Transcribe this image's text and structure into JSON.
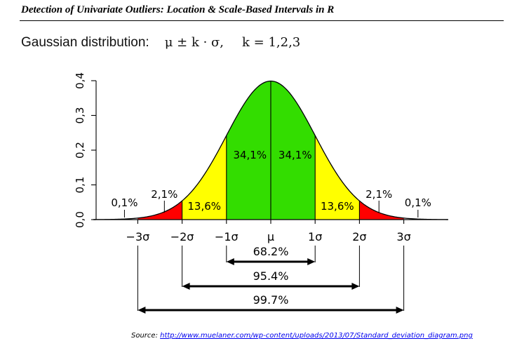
{
  "header": {
    "title": "Detection of Univariate Outliers: Location & Scale-Based Intervals in R"
  },
  "formula": {
    "label": "Gaussian distribution:",
    "expression": "μ ± k · σ,",
    "k_values": "k = 1,2,3"
  },
  "source": {
    "label": "Source:",
    "link": "http://www.muelaner.com/wp-content/uploads/2013/07/Standard_deviation_diagram.png"
  },
  "chart_data": {
    "type": "area",
    "distribution": "standard normal density",
    "ylim": [
      0,
      0.4
    ],
    "xlim": [
      -4,
      4
    ],
    "yticks": [
      "0,0",
      "0,1",
      "0,2",
      "0,3",
      "0,4"
    ],
    "ytick_values": [
      0,
      0.1,
      0.2,
      0.3,
      0.4
    ],
    "xticks": [
      "−3σ",
      "−2σ",
      "−1σ",
      "μ",
      "1σ",
      "2σ",
      "3σ"
    ],
    "xtick_values": [
      -3,
      -2,
      -1,
      0,
      1,
      2,
      3
    ],
    "colors": {
      "green": "#33dd00",
      "yellow": "#ffff00",
      "red": "#ff0000"
    },
    "regions": [
      {
        "from": -3,
        "to": -2,
        "color": "red",
        "label": "2,1%"
      },
      {
        "from": -2,
        "to": -1,
        "color": "yellow",
        "label": "13,6%"
      },
      {
        "from": -1,
        "to": 0,
        "color": "green",
        "label": "34,1%"
      },
      {
        "from": 0,
        "to": 1,
        "color": "green",
        "label": "34,1%"
      },
      {
        "from": 1,
        "to": 2,
        "color": "yellow",
        "label": "13,6%"
      },
      {
        "from": 2,
        "to": 3,
        "color": "red",
        "label": "2,1%"
      }
    ],
    "tails": [
      {
        "at": -3,
        "label": "0,1%"
      },
      {
        "at": 3,
        "label": "0,1%"
      }
    ],
    "intervals": [
      {
        "k": 1,
        "label": "68.2%"
      },
      {
        "k": 2,
        "label": "95.4%"
      },
      {
        "k": 3,
        "label": "99.7%"
      }
    ]
  }
}
